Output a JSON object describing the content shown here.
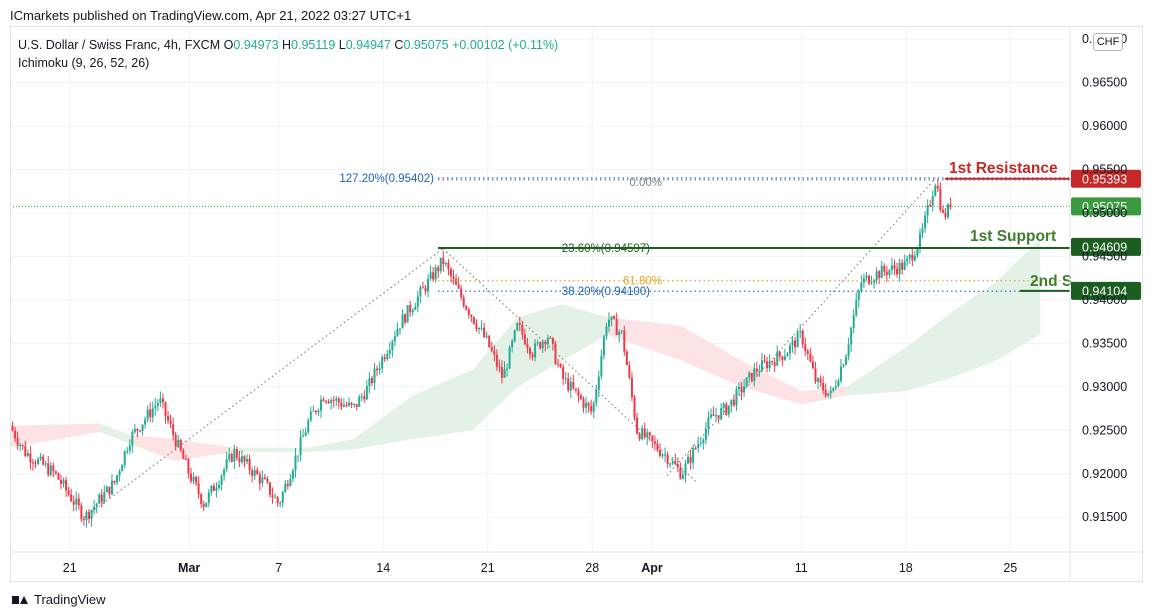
{
  "publisher_line": "ICmarkets published on TradingView.com, Apr 21, 2022 03:27 UTC+1",
  "legend": {
    "symbol": "U.S. Dollar / Swiss Franc, 4h, FXCM",
    "o_label": "O",
    "o": "0.94973",
    "h_label": "H",
    "h": "0.95119",
    "l_label": "L",
    "l": "0.94947",
    "c_label": "C",
    "c": "0.95075",
    "change": "+0.00102 (+0.11%)",
    "indicator": "Ichimoku (9, 26, 52, 26)"
  },
  "currency": "CHF",
  "footer_brand": "TradingView",
  "colors": {
    "up": "#22ab94",
    "down": "#f23645",
    "cloud_up": "#e3f1e6",
    "cloud_down": "#fde3e3",
    "resistance": "#c62828",
    "support": "#1b5e20",
    "fib_blue": "#1e63c0",
    "fib_orange": "#e6a51f",
    "price_badge": "#3a9a40"
  },
  "chart_data": {
    "type": "candlestick",
    "ylim": [
      0.911,
      0.9715
    ],
    "y_ticks": [
      "0.97000",
      "0.96500",
      "0.96000",
      "0.95500",
      "0.95000",
      "0.94500",
      "0.94000",
      "0.93500",
      "0.93000",
      "0.92500",
      "0.92000",
      "0.91500"
    ],
    "x_domain": [
      "2022-02-17",
      "2022-04-29"
    ],
    "x_ticks": [
      {
        "date": "2022-02-21",
        "label": "21"
      },
      {
        "date": "2022-03-01",
        "label": "Mar"
      },
      {
        "date": "2022-03-07",
        "label": "7"
      },
      {
        "date": "2022-03-14",
        "label": "14"
      },
      {
        "date": "2022-03-21",
        "label": "21"
      },
      {
        "date": "2022-03-28",
        "label": "28"
      },
      {
        "date": "2022-04-01",
        "label": "Apr"
      },
      {
        "date": "2022-04-11",
        "label": "11"
      },
      {
        "date": "2022-04-18",
        "label": "18"
      },
      {
        "date": "2022-04-25",
        "label": "25"
      }
    ],
    "price_path": [
      {
        "date": "2022-02-17",
        "close": 0.9255
      },
      {
        "date": "2022-02-18",
        "close": 0.9225
      },
      {
        "date": "2022-02-20",
        "close": 0.92
      },
      {
        "date": "2022-02-22",
        "close": 0.915
      },
      {
        "date": "2022-02-24",
        "close": 0.919
      },
      {
        "date": "2022-02-25",
        "close": 0.924
      },
      {
        "date": "2022-02-27",
        "close": 0.9285
      },
      {
        "date": "2022-03-01",
        "close": 0.92
      },
      {
        "date": "2022-03-02",
        "close": 0.9165
      },
      {
        "date": "2022-03-04",
        "close": 0.9225
      },
      {
        "date": "2022-03-06",
        "close": 0.919
      },
      {
        "date": "2022-03-07",
        "close": 0.9165
      },
      {
        "date": "2022-03-09",
        "close": 0.926
      },
      {
        "date": "2022-03-10",
        "close": 0.929
      },
      {
        "date": "2022-03-12",
        "close": 0.9275
      },
      {
        "date": "2022-03-13",
        "close": 0.93
      },
      {
        "date": "2022-03-15",
        "close": 0.937
      },
      {
        "date": "2022-03-17",
        "close": 0.942
      },
      {
        "date": "2022-03-18",
        "close": 0.9445
      },
      {
        "date": "2022-03-19",
        "close": 0.941
      },
      {
        "date": "2022-03-21",
        "close": 0.935
      },
      {
        "date": "2022-03-22",
        "close": 0.931
      },
      {
        "date": "2022-03-23",
        "close": 0.937
      },
      {
        "date": "2022-03-24",
        "close": 0.934
      },
      {
        "date": "2022-03-25",
        "close": 0.936
      },
      {
        "date": "2022-03-26",
        "close": 0.931
      },
      {
        "date": "2022-03-28",
        "close": 0.927
      },
      {
        "date": "2022-03-29",
        "close": 0.938
      },
      {
        "date": "2022-03-30",
        "close": 0.936
      },
      {
        "date": "2022-03-31",
        "close": 0.925
      },
      {
        "date": "2022-04-02",
        "close": 0.922
      },
      {
        "date": "2022-04-03",
        "close": 0.92
      },
      {
        "date": "2022-04-05",
        "close": 0.9265
      },
      {
        "date": "2022-04-06",
        "close": 0.9275
      },
      {
        "date": "2022-04-08",
        "close": 0.932
      },
      {
        "date": "2022-04-10",
        "close": 0.934
      },
      {
        "date": "2022-04-11",
        "close": 0.936
      },
      {
        "date": "2022-04-12",
        "close": 0.9305
      },
      {
        "date": "2022-04-13",
        "close": 0.929
      },
      {
        "date": "2022-04-14",
        "close": 0.934
      },
      {
        "date": "2022-04-15",
        "close": 0.942
      },
      {
        "date": "2022-04-16",
        "close": 0.943
      },
      {
        "date": "2022-04-18",
        "close": 0.944
      },
      {
        "date": "2022-04-19",
        "close": 0.947
      },
      {
        "date": "2022-04-20",
        "close": 0.9539
      },
      {
        "date": "2022-04-20T12:00",
        "close": 0.9495
      },
      {
        "date": "2022-04-21",
        "close": 0.95075
      }
    ],
    "cloud_path": [
      {
        "date": "2022-02-17",
        "span_a": 0.923,
        "span_b": 0.9255
      },
      {
        "date": "2022-02-23",
        "span_a": 0.9248,
        "span_b": 0.9258
      },
      {
        "date": "2022-02-25",
        "span_a": 0.9245,
        "span_b": 0.9235
      },
      {
        "date": "2022-02-28",
        "span_a": 0.9215,
        "span_b": 0.924
      },
      {
        "date": "2022-03-04",
        "span_a": 0.9225,
        "span_b": 0.923
      },
      {
        "date": "2022-03-09",
        "span_a": 0.923,
        "span_b": 0.9225
      },
      {
        "date": "2022-03-12",
        "span_a": 0.924,
        "span_b": 0.9228
      },
      {
        "date": "2022-03-16",
        "span_a": 0.929,
        "span_b": 0.924
      },
      {
        "date": "2022-03-20",
        "span_a": 0.932,
        "span_b": 0.925
      },
      {
        "date": "2022-03-23",
        "span_a": 0.938,
        "span_b": 0.93
      },
      {
        "date": "2022-03-26",
        "span_a": 0.9395,
        "span_b": 0.933
      },
      {
        "date": "2022-03-29",
        "span_a": 0.936,
        "span_b": 0.938
      },
      {
        "date": "2022-04-03",
        "span_a": 0.933,
        "span_b": 0.937
      },
      {
        "date": "2022-04-07",
        "span_a": 0.93,
        "span_b": 0.933
      },
      {
        "date": "2022-04-11",
        "span_a": 0.928,
        "span_b": 0.9295
      },
      {
        "date": "2022-04-14",
        "span_a": 0.93,
        "span_b": 0.929
      },
      {
        "date": "2022-04-18",
        "span_a": 0.9345,
        "span_b": 0.9295
      },
      {
        "date": "2022-04-21",
        "span_a": 0.9385,
        "span_b": 0.931
      },
      {
        "date": "2022-04-24",
        "span_a": 0.942,
        "span_b": 0.933
      },
      {
        "date": "2022-04-27",
        "span_a": 0.947,
        "span_b": 0.936
      }
    ],
    "trend_lines": [
      {
        "from": {
          "date": "2022-02-22",
          "price": 0.915
        },
        "to": {
          "date": "2022-03-18",
          "price": 0.9459
        }
      },
      {
        "from": {
          "date": "2022-03-18",
          "price": 0.9459
        },
        "to": {
          "date": "2022-04-04",
          "price": 0.919
        }
      },
      {
        "from": {
          "date": "2022-04-02",
          "price": 0.9198
        },
        "to": {
          "date": "2022-04-20",
          "price": 0.954
        }
      }
    ],
    "fib_levels": [
      {
        "label": "127.20%(0.95402)",
        "price": 0.95402,
        "color": "#1e63c0"
      },
      {
        "label": "0.00%",
        "price": 0.9538,
        "color": "#808080"
      },
      {
        "label": "23.60%(0.94597)",
        "price": 0.94597,
        "color": "#1b5e20"
      },
      {
        "label": "61.80%",
        "price": 0.9422,
        "color": "#e6a51f"
      },
      {
        "label": "38.20%(0.94100)",
        "price": 0.941,
        "color": "#1e63c0"
      }
    ],
    "annotations": [
      {
        "label": "1st Resistance",
        "price": 0.95393,
        "color": "#c62828"
      },
      {
        "label": "1st Support",
        "price": 0.94609,
        "color": "#3d7d2b"
      },
      {
        "label": "2nd S",
        "price": 0.94104,
        "color": "#3d7d2b"
      }
    ],
    "price_labels": [
      {
        "value": "0.95393",
        "price": 0.95393,
        "color": "#c62828"
      },
      {
        "value": "0.95075",
        "price": 0.95075,
        "color": "#3a9a40"
      },
      {
        "value": "0.94609",
        "price": 0.94609,
        "color": "#1b5e20"
      },
      {
        "value": "0.94104",
        "price": 0.94104,
        "color": "#1b5e20"
      }
    ]
  }
}
